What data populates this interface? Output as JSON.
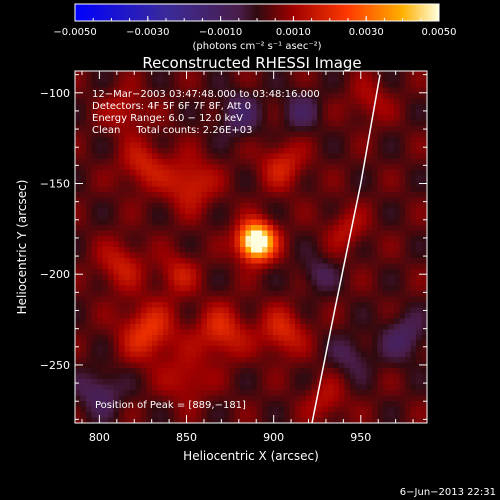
{
  "chart_data": {
    "type": "heatmap",
    "title": "Reconstructed RHESSI Image",
    "xlabel": "Heliocentric X (arcsec)",
    "ylabel": "Heliocentric Y (arcsec)",
    "xlim": [
      786,
      988
    ],
    "ylim": [
      -282,
      -88
    ],
    "xticks": [
      800,
      850,
      900,
      950
    ],
    "xtick_labels": [
      "800",
      "850",
      "900",
      "950"
    ],
    "yticks": [
      -100,
      -150,
      -200,
      -250
    ],
    "ytick_labels": [
      "−100",
      "−150",
      "−200",
      "−250"
    ],
    "colorbar": {
      "min": -0.005,
      "max": 0.005,
      "ticks": [
        -0.005,
        -0.003,
        -0.001,
        0.001,
        0.003,
        0.005
      ],
      "tick_labels": [
        "−0.0050",
        "−0.0030",
        "−0.0010",
        "0.0010",
        "0.0030",
        "0.0050"
      ],
      "units_text": "(photons cm⁻² s⁻¹ asec⁻²)"
    },
    "annotations": [
      "12−Mar−2003 03:47:48.000 to 03:48:16.000",
      "Detectors: 4F 5F 6F 7F 8F, Att 0",
      "Energy Range: 6.0 − 12.0 keV",
      "Clean     Total counts: 2.26E+03"
    ],
    "peak_label": "Position of Peak = [889,−181]",
    "peak": {
      "x": 889,
      "y": -181,
      "value": 0.005
    },
    "limb_line": [
      [
        961,
        -90
      ],
      [
        950,
        -150
      ],
      [
        935,
        -220
      ],
      [
        922,
        -282
      ]
    ],
    "sources": [
      {
        "x": 890,
        "y": -182,
        "sigma": 7,
        "amp": 0.0062
      },
      {
        "x": 852,
        "y": -150,
        "sigma": 10,
        "amp": 0.0016
      },
      {
        "x": 825,
        "y": -140,
        "sigma": 9,
        "amp": 0.0014
      },
      {
        "x": 828,
        "y": -232,
        "sigma": 11,
        "amp": 0.0019
      },
      {
        "x": 870,
        "y": -232,
        "sigma": 10,
        "amp": 0.0017
      },
      {
        "x": 905,
        "y": -232,
        "sigma": 9,
        "amp": 0.0016
      },
      {
        "x": 905,
        "y": -140,
        "sigma": 9,
        "amp": 0.0014
      },
      {
        "x": 812,
        "y": -195,
        "sigma": 9,
        "amp": 0.0013
      },
      {
        "x": 845,
        "y": -200,
        "sigma": 8,
        "amp": 0.0012
      },
      {
        "x": 850,
        "y": -258,
        "sigma": 9,
        "amp": 0.0011
      },
      {
        "x": 815,
        "y": -110,
        "sigma": 8,
        "amp": 0.0011
      },
      {
        "x": 942,
        "y": -175,
        "sigma": 8,
        "amp": 0.001
      },
      {
        "x": 955,
        "y": -105,
        "sigma": 8,
        "amp": 0.0009
      },
      {
        "x": 930,
        "y": -270,
        "sigma": 8,
        "amp": 0.001
      },
      {
        "x": 880,
        "y": -112,
        "sigma": 9,
        "amp": -0.0012
      },
      {
        "x": 915,
        "y": -110,
        "sigma": 8,
        "amp": -0.001
      },
      {
        "x": 800,
        "y": -265,
        "sigma": 9,
        "amp": -0.0012
      },
      {
        "x": 975,
        "y": -235,
        "sigma": 9,
        "amp": -0.0012
      },
      {
        "x": 945,
        "y": -245,
        "sigma": 8,
        "amp": -0.0009
      },
      {
        "x": 925,
        "y": -200,
        "sigma": 7,
        "amp": -0.0009
      }
    ]
  },
  "footer": {
    "date": "6−Jun−2013 22:31"
  }
}
